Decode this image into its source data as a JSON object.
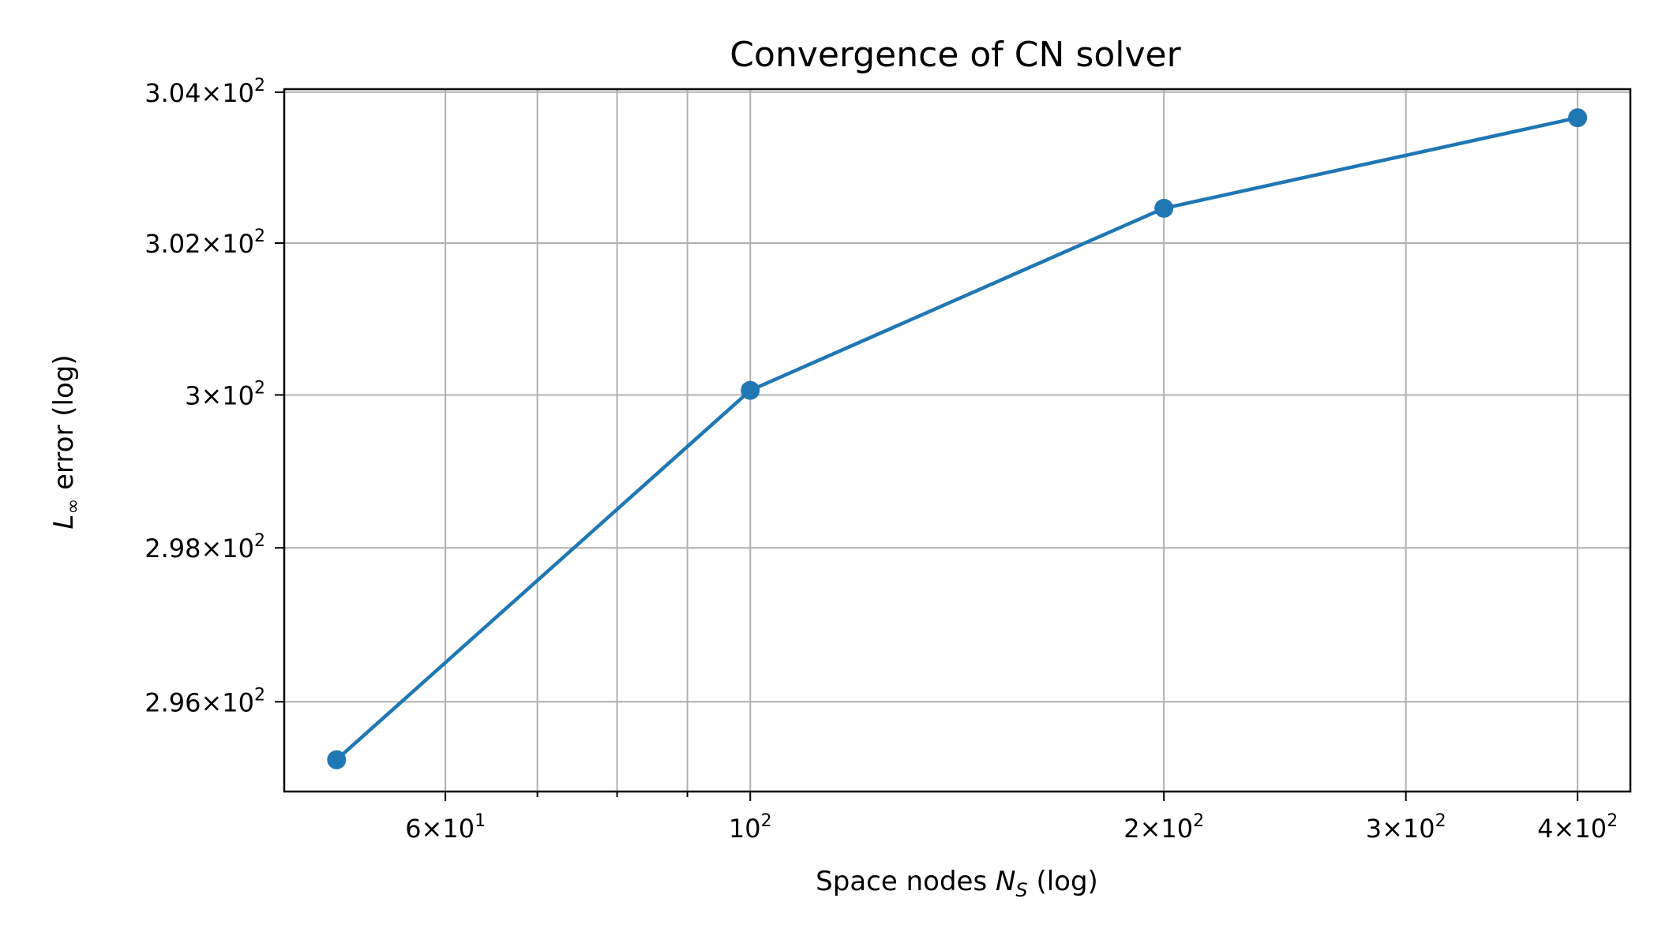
{
  "chart_data": {
    "type": "line",
    "title": "Convergence of CN solver",
    "xlabel": {
      "main": "Space nodes ",
      "var": "N",
      "sub": "S",
      "suffix": " (log)"
    },
    "ylabel": {
      "var": "L",
      "sub": "∞",
      "suffix": " error (log)"
    },
    "xscale": "log",
    "yscale": "log",
    "xlim": [
      45.8,
      437
    ],
    "ylim": [
      294.84,
      304.04
    ],
    "grid": true,
    "color": "#1f77b4",
    "marker": "circle",
    "series": [
      {
        "x": [
          50,
          100,
          200,
          400
        ],
        "y": [
          295.25,
          300.06,
          302.46,
          303.66
        ]
      }
    ],
    "xticks_major": [
      {
        "value": 60,
        "mant": "6",
        "exp": "1"
      },
      {
        "value": 100,
        "mant": "",
        "exp": "2"
      },
      {
        "value": 200,
        "mant": "2",
        "exp": "2"
      },
      {
        "value": 300,
        "mant": "3",
        "exp": "2"
      },
      {
        "value": 400,
        "mant": "4",
        "exp": "2"
      }
    ],
    "xticks_minor": [
      70,
      80,
      90
    ],
    "yticks": [
      {
        "value": 296,
        "mant": "2.96",
        "exp": "2"
      },
      {
        "value": 298,
        "mant": "2.98",
        "exp": "2"
      },
      {
        "value": 300,
        "mant": "3",
        "exp": "2"
      },
      {
        "value": 302,
        "mant": "3.02",
        "exp": "2"
      },
      {
        "value": 304,
        "mant": "3.04",
        "exp": "2"
      }
    ]
  }
}
